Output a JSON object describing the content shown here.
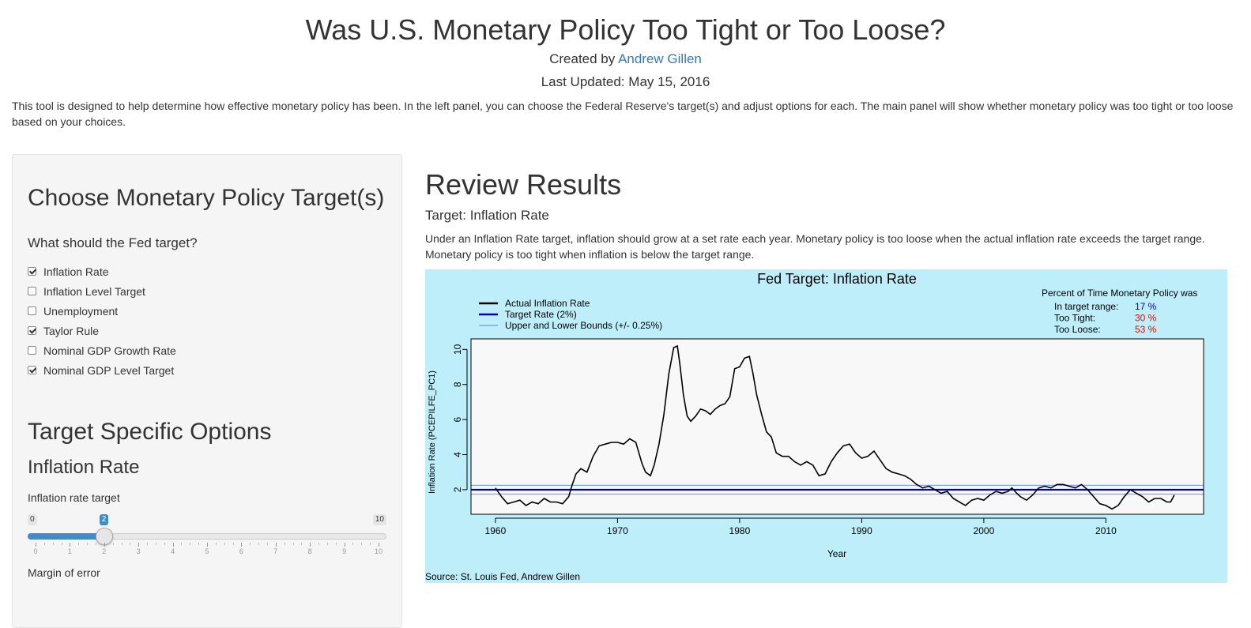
{
  "header": {
    "title": "Was U.S. Monetary Policy Too Tight or Too Loose?",
    "created_by_prefix": "Created by",
    "author": "Andrew Gillen",
    "last_updated": "Last Updated: May 15, 2016",
    "intro": "This tool is designed to help determine how effective monetary policy has been. In the left panel, you can choose the Federal Reserve's target(s) and adjust options for each. The main panel will show whether monetary policy was too tight or too loose based on your choices."
  },
  "sidebar": {
    "heading": "Choose Monetary Policy Target(s)",
    "question": "What should the Fed target?",
    "targets": [
      {
        "label": "Inflation Rate",
        "checked": true
      },
      {
        "label": "Inflation Level Target",
        "checked": false
      },
      {
        "label": "Unemployment",
        "checked": false
      },
      {
        "label": "Taylor Rule",
        "checked": true
      },
      {
        "label": "Nominal GDP Growth Rate",
        "checked": false
      },
      {
        "label": "Nominal GDP Level Target",
        "checked": true
      }
    ],
    "options_heading": "Target Specific Options",
    "section_heading": "Inflation Rate",
    "slider": {
      "label": "Inflation rate target",
      "min": 0,
      "max": 10,
      "value": 2,
      "min_label": "0",
      "max_label": "10",
      "value_label": "2",
      "tick_labels": [
        "0",
        "1",
        "2",
        "3",
        "4",
        "5",
        "6",
        "7",
        "8",
        "9",
        "10"
      ]
    },
    "next_label": "Margin of error"
  },
  "main": {
    "heading": "Review Results",
    "subheading": "Target: Inflation Rate",
    "description": "Under an Inflation Rate target, inflation should grow at a set rate each year. Monetary policy is too loose when the actual inflation rate exceeds the target range. Monetary policy is too tight when inflation is below the target range."
  },
  "chart_data": {
    "type": "line",
    "title": "Fed Target: Inflation Rate",
    "xlabel": "Year",
    "ylabel": "Inflation Rate (PCEPILFE_PC1)",
    "xlim": [
      1958,
      2018
    ],
    "ylim": [
      0.6,
      10.6
    ],
    "xticks": [
      1960,
      1970,
      1980,
      1990,
      2000,
      2010
    ],
    "yticks": [
      2,
      4,
      6,
      8,
      10
    ],
    "grid": false,
    "background": "#bfeefb",
    "plot_background": "#f8f8f8",
    "source": "Source: St. Louis Fed, Andrew Gillen",
    "legend": {
      "placement": "top-left",
      "entries": [
        {
          "label": "Actual Inflation Rate",
          "color": "#000000"
        },
        {
          "label": "Target Rate (2%)",
          "color": "#0000cc"
        },
        {
          "label": "Upper and Lower Bounds (+/- 0.25%)",
          "color": "#7fa8e0"
        }
      ]
    },
    "summary": {
      "title": "Percent of Time Monetary Policy was",
      "rows": [
        {
          "label": "In target range:",
          "value": "17 %",
          "color": "#0000ee"
        },
        {
          "label": "Too Tight:",
          "value": "30 %",
          "color": "#ee0000"
        },
        {
          "label": "Too Loose:",
          "value": "53 %",
          "color": "#ee0000"
        }
      ]
    },
    "target": 2.0,
    "upper_bound": 2.25,
    "lower_bound": 1.75,
    "series": [
      {
        "name": "Actual Inflation Rate",
        "x": [
          1960.0,
          1960.5,
          1961.0,
          1961.5,
          1962.0,
          1962.5,
          1963.0,
          1963.5,
          1964.0,
          1964.5,
          1965.0,
          1965.5,
          1966.0,
          1966.3,
          1966.6,
          1967.0,
          1967.5,
          1968.0,
          1968.5,
          1969.0,
          1969.5,
          1970.0,
          1970.5,
          1971.0,
          1971.5,
          1972.0,
          1972.3,
          1972.7,
          1973.0,
          1973.4,
          1973.8,
          1974.2,
          1974.6,
          1974.9,
          1975.1,
          1975.4,
          1975.7,
          1976.0,
          1976.4,
          1976.8,
          1977.2,
          1977.6,
          1978.0,
          1978.4,
          1978.8,
          1979.2,
          1979.6,
          1980.0,
          1980.4,
          1980.8,
          1981.1,
          1981.4,
          1981.8,
          1982.2,
          1982.6,
          1983.0,
          1983.5,
          1984.0,
          1984.5,
          1985.0,
          1985.5,
          1986.0,
          1986.5,
          1987.0,
          1987.5,
          1988.0,
          1988.5,
          1989.0,
          1989.5,
          1990.0,
          1990.5,
          1991.0,
          1991.5,
          1992.0,
          1992.5,
          1993.0,
          1993.5,
          1994.0,
          1994.5,
          1995.0,
          1995.5,
          1996.0,
          1996.5,
          1997.0,
          1997.5,
          1998.0,
          1998.5,
          1999.0,
          1999.5,
          2000.0,
          2000.5,
          2001.0,
          2001.5,
          2002.0,
          2002.3,
          2002.7,
          2003.0,
          2003.5,
          2004.0,
          2004.5,
          2005.0,
          2005.5,
          2006.0,
          2006.5,
          2007.0,
          2007.5,
          2008.0,
          2008.5,
          2009.0,
          2009.5,
          2010.0,
          2010.5,
          2011.0,
          2011.5,
          2012.0,
          2012.5,
          2013.0,
          2013.5,
          2014.0,
          2014.5,
          2015.0,
          2015.3,
          2015.6
        ],
        "y": [
          2.1,
          1.6,
          1.2,
          1.3,
          1.4,
          1.1,
          1.3,
          1.2,
          1.5,
          1.3,
          1.3,
          1.2,
          1.6,
          2.3,
          2.9,
          3.2,
          3.0,
          3.9,
          4.5,
          4.6,
          4.7,
          4.7,
          4.6,
          4.9,
          4.7,
          3.5,
          3.0,
          2.8,
          3.4,
          4.6,
          6.3,
          8.6,
          10.1,
          10.2,
          9.2,
          7.4,
          6.2,
          5.9,
          6.2,
          6.6,
          6.5,
          6.3,
          6.6,
          6.8,
          6.9,
          7.3,
          8.9,
          9.0,
          9.5,
          9.6,
          8.6,
          7.4,
          6.3,
          5.3,
          5.0,
          4.1,
          3.9,
          3.9,
          3.6,
          3.4,
          3.6,
          3.4,
          2.8,
          2.9,
          3.6,
          4.1,
          4.5,
          4.6,
          4.1,
          3.8,
          3.9,
          4.2,
          3.7,
          3.2,
          3.0,
          2.9,
          2.8,
          2.6,
          2.3,
          2.1,
          2.2,
          2.0,
          1.8,
          1.9,
          1.5,
          1.3,
          1.1,
          1.4,
          1.5,
          1.4,
          1.7,
          1.9,
          1.8,
          1.9,
          2.1,
          1.8,
          1.6,
          1.4,
          1.7,
          2.1,
          2.2,
          2.1,
          2.3,
          2.3,
          2.2,
          2.1,
          2.3,
          2.0,
          1.6,
          1.2,
          1.1,
          0.9,
          1.1,
          1.6,
          2.0,
          1.8,
          1.6,
          1.3,
          1.5,
          1.5,
          1.3,
          1.3,
          1.7
        ]
      },
      {
        "name": "Target Rate (2%)",
        "x": [
          1958,
          2018
        ],
        "y": [
          2.0,
          2.0
        ]
      },
      {
        "name": "Upper and Lower Bounds (+/- 0.25%)",
        "x": [
          1958,
          2018
        ],
        "y": [
          2.25,
          2.25
        ]
      }
    ]
  }
}
